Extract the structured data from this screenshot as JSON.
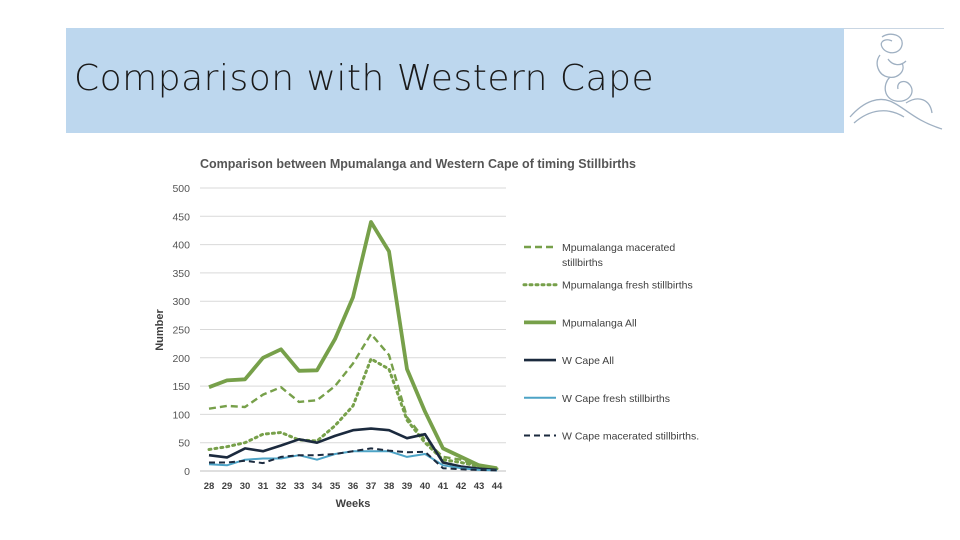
{
  "slide": {
    "title": "Comparison with Western Cape"
  },
  "colors": {
    "banner": "#bdd7ee",
    "mp_green": "#77a04a",
    "wcape_navy": "#1b2a3e",
    "wcape_blue": "#4da3c6"
  },
  "logo": {
    "icon": "mother-child-logo-icon"
  },
  "chart_data": {
    "type": "line",
    "title": "Comparison between Mpumalanga and Western Cape of timing Stillbirths",
    "xlabel": "Weeks",
    "ylabel": "Number",
    "ylim": [
      0,
      500
    ],
    "yticks": [
      0,
      50,
      100,
      150,
      200,
      250,
      300,
      350,
      400,
      450,
      500
    ],
    "grid": true,
    "legend_position": "right",
    "x": [
      "28",
      "29",
      "30",
      "31",
      "32",
      "33",
      "34",
      "35",
      "36",
      "37",
      "38",
      "39",
      "40",
      "41",
      "42",
      "43",
      "44"
    ],
    "series": [
      {
        "name": "Mpumalanga macerated stillbirths",
        "legend_lines": [
          "Mpumalanga macerated",
          "stillbirths"
        ],
        "color": "#77a04a",
        "dash": "7,4",
        "width": 2.4,
        "values": [
          110,
          115,
          113,
          135,
          148,
          122,
          125,
          150,
          190,
          242,
          205,
          95,
          55,
          25,
          20,
          8,
          5
        ]
      },
      {
        "name": "Mpumalanga fresh stillbirths",
        "legend_lines": [
          "Mpumalanga fresh stillbirths"
        ],
        "color": "#77a04a",
        "dash": "2,4",
        "width": 3,
        "values": [
          38,
          43,
          50,
          65,
          68,
          55,
          53,
          80,
          115,
          198,
          180,
          90,
          50,
          20,
          15,
          8,
          4
        ]
      },
      {
        "name": "Mpumalanga All",
        "legend_lines": [
          "Mpumalanga All"
        ],
        "color": "#77a04a",
        "dash": "",
        "width": 3.8,
        "values": [
          148,
          160,
          162,
          200,
          215,
          177,
          178,
          233,
          307,
          440,
          388,
          180,
          105,
          40,
          25,
          10,
          5
        ]
      },
      {
        "name": "W Cape All",
        "legend_lines": [
          "W Cape All"
        ],
        "color": "#1b2a3e",
        "dash": "",
        "width": 2.6,
        "values": [
          28,
          24,
          40,
          35,
          45,
          56,
          50,
          62,
          72,
          75,
          72,
          58,
          65,
          15,
          8,
          4,
          2
        ]
      },
      {
        "name": "W Cape fresh stillbirths",
        "legend_lines": [
          "W Cape fresh stillbirths"
        ],
        "color": "#4da3c6",
        "dash": "",
        "width": 2,
        "values": [
          12,
          10,
          20,
          22,
          22,
          28,
          20,
          30,
          35,
          35,
          35,
          25,
          30,
          10,
          5,
          2,
          1
        ]
      },
      {
        "name": "W Cape macerated stillbirths.",
        "legend_lines": [
          "W Cape macerated stillbirths."
        ],
        "color": "#1b2a3e",
        "dash": "6,4",
        "width": 2,
        "values": [
          15,
          15,
          18,
          14,
          25,
          28,
          28,
          30,
          35,
          40,
          36,
          33,
          34,
          5,
          3,
          2,
          1
        ]
      }
    ]
  }
}
